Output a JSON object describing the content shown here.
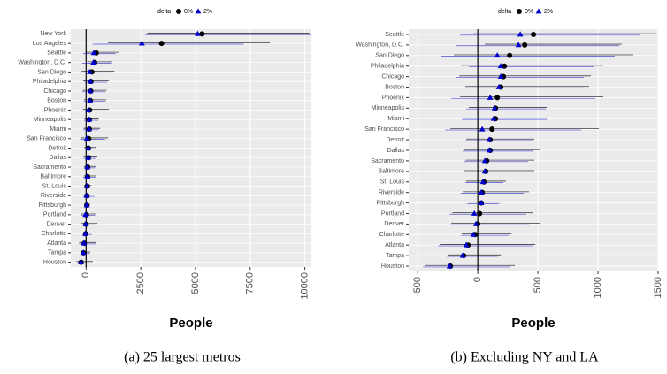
{
  "chart_data": [
    {
      "type": "dot",
      "caption": "(a) 25 largest metros",
      "x_label": "People",
      "legend_title": "delta",
      "categories": [
        "New York",
        "Los Angeles",
        "Seattle",
        "Washington, D.C.",
        "San Diego",
        "Philadelphia",
        "Chicago",
        "Boston",
        "Phoenix",
        "Minneapolis",
        "Miami",
        "San Francisco",
        "Detroit",
        "Dallas",
        "Sacramento",
        "Baltimore",
        "St. Louis",
        "Riverside",
        "Pittsburgh",
        "Portland",
        "Denver",
        "Charlotte",
        "Atlanta",
        "Tampa",
        "Houston"
      ],
      "series": [
        {
          "name": "0%",
          "color": "#000000",
          "marker": "circle",
          "values": [
            5300,
            3450,
            463,
            390,
            265,
            221,
            213,
            191,
            162,
            147,
            147,
            118,
            103,
            103,
            74,
            66,
            51,
            37,
            29,
            15,
            0,
            -22,
            -81,
            -118,
            -228
          ],
          "lower": [
            2800,
            1000,
            -37,
            59,
            -199,
            -140,
            -154,
            -103,
            -147,
            -74,
            -118,
            -228,
            -96,
            -110,
            -103,
            -110,
            -96,
            -125,
            -74,
            -213,
            -221,
            -132,
            -316,
            -243,
            -441
          ],
          "upper": [
            10200,
            8400,
            1485,
            1197,
            1294,
            1044,
            941,
            926,
            1044,
            574,
            647,
            1007,
            470,
            515,
            470,
            470,
            235,
            426,
            191,
            456,
            522,
            279,
            478,
            191,
            309
          ]
        },
        {
          "name": "2%",
          "color": "#0000cc",
          "marker": "triangle",
          "values": [
            5100,
            2550,
            353,
            338,
            162,
            191,
            191,
            176,
            103,
            140,
            132,
            37,
            96,
            96,
            59,
            59,
            44,
            29,
            29,
            -29,
            -15,
            -37,
            -96,
            -125,
            -235
          ],
          "lower": [
            2700,
            300,
            -147,
            -176,
            -309,
            -74,
            -184,
            -110,
            -221,
            -96,
            -132,
            -272,
            -103,
            -125,
            -118,
            -140,
            -103,
            -140,
            -88,
            -235,
            -235,
            -140,
            -331,
            -257,
            -456
          ],
          "upper": [
            10300,
            7200,
            1345,
            1176,
            1139,
            970,
            882,
            882,
            977,
            566,
            574,
            860,
            463,
            463,
            419,
            426,
            213,
            382,
            176,
            404,
            426,
            257,
            463,
            162,
            272
          ]
        }
      ],
      "xlim": [
        -700,
        10300
      ],
      "xticks": [
        0,
        2500,
        5000,
        7500,
        10000
      ],
      "vline": 0,
      "grid": true
    },
    {
      "type": "dot",
      "caption": "(b) Excluding NY and LA",
      "x_label": "People",
      "legend_title": "delta",
      "categories": [
        "Seattle",
        "Washington, D.C.",
        "San Diego",
        "Philadelphia",
        "Chicago",
        "Boston",
        "Phoenix",
        "Minneapolis",
        "Miami",
        "San Francisco",
        "Detroit",
        "Dallas",
        "Sacramento",
        "Baltimore",
        "St. Louis",
        "Riverside",
        "Pittsburgh",
        "Portland",
        "Denver",
        "Charlotte",
        "Atlanta",
        "Tampa",
        "Houston"
      ],
      "series": [
        {
          "name": "0%",
          "color": "#000000",
          "marker": "circle",
          "values": [
            463,
            390,
            265,
            221,
            213,
            191,
            162,
            147,
            147,
            118,
            103,
            103,
            74,
            66,
            51,
            37,
            29,
            15,
            0,
            -22,
            -81,
            -118,
            -228
          ],
          "lower": [
            -37,
            59,
            -199,
            -140,
            -154,
            -103,
            -147,
            -74,
            -118,
            -228,
            -96,
            -110,
            -103,
            -110,
            -96,
            -125,
            -74,
            -213,
            -221,
            -132,
            -316,
            -243,
            -441
          ],
          "upper": [
            1485,
            1197,
            1294,
            1044,
            941,
            926,
            1044,
            574,
            647,
            1007,
            470,
            515,
            470,
            470,
            235,
            426,
            191,
            456,
            522,
            279,
            478,
            191,
            309
          ]
        },
        {
          "name": "2%",
          "color": "#0000cc",
          "marker": "triangle",
          "values": [
            353,
            338,
            162,
            191,
            191,
            176,
            103,
            140,
            132,
            37,
            96,
            96,
            59,
            59,
            44,
            29,
            29,
            -29,
            -15,
            -37,
            -96,
            -125,
            -235
          ],
          "lower": [
            -147,
            -176,
            -309,
            -74,
            -184,
            -110,
            -221,
            -96,
            -132,
            -272,
            -103,
            -125,
            -118,
            -140,
            -103,
            -140,
            -88,
            -235,
            -235,
            -140,
            -331,
            -257,
            -456
          ],
          "upper": [
            1345,
            1176,
            1139,
            970,
            882,
            882,
            977,
            566,
            574,
            860,
            463,
            463,
            419,
            426,
            213,
            382,
            176,
            404,
            426,
            257,
            463,
            162,
            272
          ]
        }
      ],
      "xlim": [
        -575,
        1500
      ],
      "xticks": [
        -500,
        0,
        500,
        1000,
        1500
      ],
      "vline": 0,
      "grid": true
    }
  ]
}
